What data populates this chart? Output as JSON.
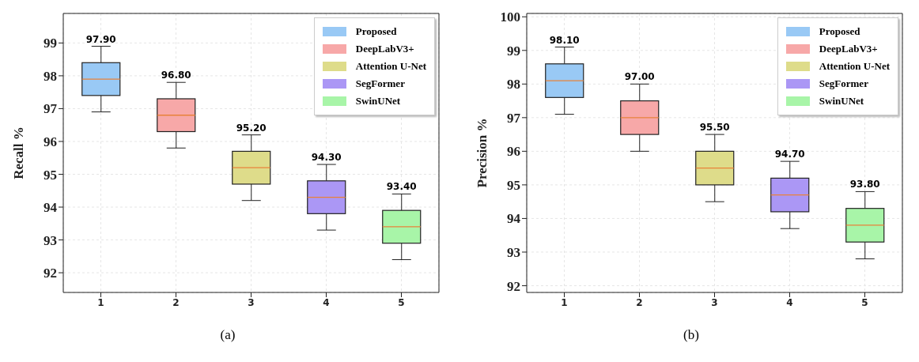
{
  "chart_data": [
    {
      "type": "box",
      "ylabel": "Recall %",
      "categories": [
        "1",
        "2",
        "3",
        "4",
        "5"
      ],
      "ylim": [
        91.4,
        99.9
      ],
      "yticks": [
        92,
        93,
        94,
        95,
        96,
        97,
        98,
        99
      ],
      "grid": true,
      "legend": "top right",
      "series": [
        {
          "name": "Proposed",
          "color": "#99c9f5",
          "boxes": [
            {
              "low": 96.9,
              "q1": 97.4,
              "median": 97.9,
              "q3": 98.4,
              "high": 98.9
            },
            null,
            null,
            null,
            null
          ]
        },
        {
          "name": "DeepLabV3+",
          "color": "#f7a8a8",
          "boxes": [
            null,
            {
              "low": 95.8,
              "q1": 96.3,
              "median": 96.8,
              "q3": 97.3,
              "high": 97.8
            },
            null,
            null,
            null
          ]
        },
        {
          "name": "Attention U-Net",
          "color": "#dedc8a",
          "boxes": [
            null,
            null,
            {
              "low": 94.2,
              "q1": 94.7,
              "median": 95.2,
              "q3": 95.7,
              "high": 96.2
            },
            null,
            null
          ]
        },
        {
          "name": "SegFormer",
          "color": "#ab97f5",
          "boxes": [
            null,
            null,
            null,
            {
              "low": 93.3,
              "q1": 93.8,
              "median": 94.3,
              "q3": 94.8,
              "high": 95.3
            },
            null
          ]
        },
        {
          "name": "SwinUNet",
          "color": "#a8f5a8",
          "boxes": [
            null,
            null,
            null,
            null,
            {
              "low": 92.4,
              "q1": 92.9,
              "median": 93.4,
              "q3": 93.9,
              "high": 94.4
            }
          ]
        }
      ],
      "annotations": [
        {
          "text": "97.90",
          "x": "1",
          "y": 98.9
        },
        {
          "text": "96.80",
          "x": "2",
          "y": 97.8
        },
        {
          "text": "95.20",
          "x": "3",
          "y": 96.2
        },
        {
          "text": "94.30",
          "x": "4",
          "y": 95.3
        },
        {
          "text": "93.40",
          "x": "5",
          "y": 94.4
        },
        "(a)"
      ]
    },
    {
      "type": "box",
      "ylabel": "Precision %",
      "categories": [
        "1",
        "2",
        "3",
        "4",
        "5"
      ],
      "ylim": [
        91.8,
        100.1
      ],
      "yticks": [
        92,
        93,
        94,
        95,
        96,
        97,
        98,
        99,
        100
      ],
      "grid": true,
      "legend": "top right",
      "series": [
        {
          "name": "Proposed",
          "color": "#99c9f5",
          "boxes": [
            {
              "low": 97.1,
              "q1": 97.6,
              "median": 98.1,
              "q3": 98.6,
              "high": 99.1
            },
            null,
            null,
            null,
            null
          ]
        },
        {
          "name": "DeepLabV3+",
          "color": "#f7a8a8",
          "boxes": [
            null,
            {
              "low": 96.0,
              "q1": 96.5,
              "median": 97.0,
              "q3": 97.5,
              "high": 98.0
            },
            null,
            null,
            null
          ]
        },
        {
          "name": "Attention U-Net",
          "color": "#dedc8a",
          "boxes": [
            null,
            null,
            {
              "low": 94.5,
              "q1": 95.0,
              "median": 95.5,
              "q3": 96.0,
              "high": 96.5
            },
            null,
            null
          ]
        },
        {
          "name": "SegFormer",
          "color": "#ab97f5",
          "boxes": [
            null,
            null,
            null,
            {
              "low": 93.7,
              "q1": 94.2,
              "median": 94.7,
              "q3": 95.2,
              "high": 95.7
            },
            null
          ]
        },
        {
          "name": "SwinUNet",
          "color": "#a8f5a8",
          "boxes": [
            null,
            null,
            null,
            null,
            {
              "low": 92.8,
              "q1": 93.3,
              "median": 93.8,
              "q3": 94.3,
              "high": 94.8
            }
          ]
        }
      ],
      "annotations": [
        {
          "text": "98.10",
          "x": "1",
          "y": 99.1
        },
        {
          "text": "97.00",
          "x": "2",
          "y": 98.0
        },
        {
          "text": "95.50",
          "x": "3",
          "y": 96.5
        },
        {
          "text": "94.70",
          "x": "4",
          "y": 95.7
        },
        {
          "text": "93.80",
          "x": "5",
          "y": 94.8
        },
        "(b)"
      ]
    }
  ]
}
